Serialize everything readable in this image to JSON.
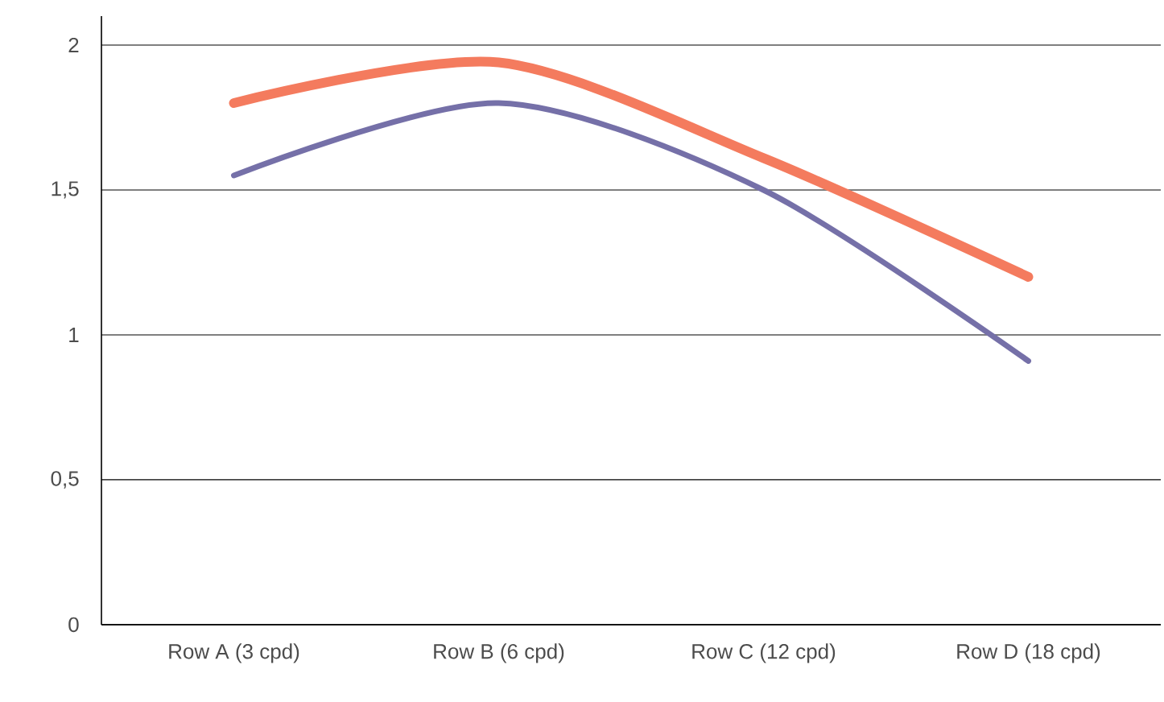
{
  "chart_data": {
    "type": "line",
    "categories": [
      "Row A (3 cpd)",
      "Row B (6 cpd)",
      "Row C (12 cpd)",
      "Row D (18 cpd)"
    ],
    "series": [
      {
        "color": "#f47b5e",
        "values": [
          1.8,
          1.94,
          1.61,
          1.2
        ]
      },
      {
        "color": "#7570a8",
        "values": [
          1.55,
          1.8,
          1.5,
          0.91
        ]
      }
    ],
    "ylim": [
      0,
      2.1
    ],
    "yticks": [
      0,
      {
        "value": 0.5,
        "label": "0,5"
      },
      1,
      {
        "value": 1.5,
        "label": "1,5"
      },
      2
    ],
    "grid": "y",
    "marker": "none",
    "line_style": "solid"
  }
}
